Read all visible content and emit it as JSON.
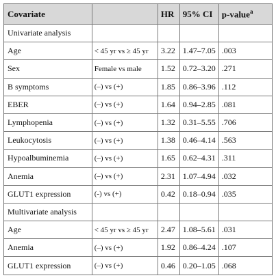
{
  "header": {
    "covariate": "Covariate",
    "hr": "HR",
    "ci": "95% CI",
    "p": "p-value",
    "p_note": "a"
  },
  "sections": [
    {
      "title": "Univariate analysis",
      "rows": [
        [
          "Age",
          "< 45 yr vs ≥ 45 yr",
          "3.22",
          "1.47–7.05",
          ".003"
        ],
        [
          "Sex",
          "Female vs male",
          "1.52",
          "0.72–3.20",
          ".271"
        ],
        [
          "B symptoms",
          "(–) vs (+)",
          "1.85",
          "0.86–3.96",
          ".112"
        ],
        [
          "EBER",
          "(–) vs (+)",
          "1.64",
          "0.94–2.85",
          ".081"
        ],
        [
          "Lymphopenia",
          "(–) vs (+)",
          "1.32",
          "0.31–5.55",
          ".706"
        ],
        [
          "Leukocytosis",
          "(–) vs (+)",
          "1.38",
          "0.46–4.14",
          ".563"
        ],
        [
          "Hypoalbuminemia",
          "(–) vs (+)",
          "1.65",
          "0.62–4.31",
          ".311"
        ],
        [
          "Anemia",
          "(–) vs (+)",
          "2.31",
          "1.07–4.94",
          ".032"
        ],
        [
          "GLUT1 expression",
          "(-) vs (+)",
          "0.42",
          "0.18–0.94",
          ".035"
        ]
      ]
    },
    {
      "title": "Multivariate analysis",
      "rows": [
        [
          "Age",
          "< 45 yr vs ≥ 45 yr",
          "2.47",
          "1.08–5.61",
          ".031"
        ],
        [
          "Anemia",
          "(–) vs (+)",
          "1.92",
          "0.86–4.24",
          ".107"
        ],
        [
          "GLUT1 expression",
          "(–) vs (+)",
          "0.46",
          "0.20–1.05",
          ".068"
        ]
      ]
    }
  ]
}
